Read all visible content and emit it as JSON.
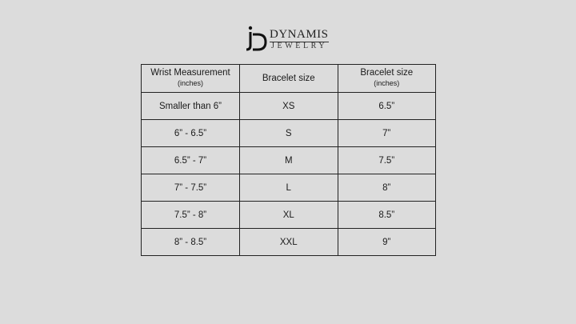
{
  "logo": {
    "brand": "DYNAMIS",
    "sub": "JEWELRY",
    "monogram": "JD"
  },
  "table": {
    "headers": [
      {
        "main": "Wrist Measurement",
        "sub": "(inches)"
      },
      {
        "main": "Bracelet size",
        "sub": ""
      },
      {
        "main": "Bracelet size",
        "sub": "(inches)"
      }
    ],
    "rows": [
      [
        "Smaller than 6”",
        "XS",
        "6.5”"
      ],
      [
        "6” - 6.5”",
        "S",
        "7”"
      ],
      [
        "6.5” - 7”",
        "M",
        "7.5”"
      ],
      [
        "7” - 7.5”",
        "L",
        "8”"
      ],
      [
        "7.5” - 8”",
        "XL",
        "8.5”"
      ],
      [
        "8” - 8.5”",
        "XXL",
        "9”"
      ]
    ]
  }
}
